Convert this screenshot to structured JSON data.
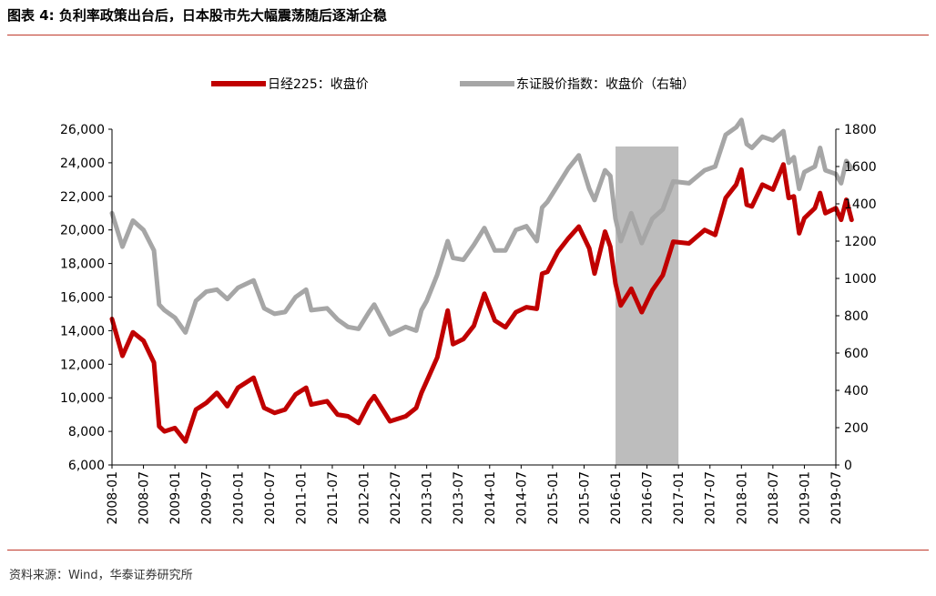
{
  "figure": {
    "title": "图表 4:  负利率政策出台后，日本股市先大幅震荡随后逐渐企稳",
    "source": "资料来源：Wind，华泰证券研究所"
  },
  "chart_data": {
    "type": "line",
    "legend": {
      "placement": "top-center",
      "entries": [
        "日经225：收盘价",
        "东证股价指数：收盘价（右轴）"
      ]
    },
    "x_tick_labels": [
      "2008-01",
      "2008-07",
      "2009-01",
      "2009-07",
      "2010-01",
      "2010-07",
      "2011-01",
      "2011-07",
      "2012-01",
      "2012-07",
      "2013-01",
      "2013-07",
      "2014-01",
      "2014-07",
      "2015-01",
      "2015-07",
      "2016-01",
      "2016-07",
      "2017-01",
      "2017-07",
      "2018-01",
      "2018-07",
      "2019-01",
      "2019-07"
    ],
    "y_left": {
      "min": 6000,
      "max": 26000,
      "ticks": [
        "6,000",
        "8,000",
        "10,000",
        "12,000",
        "14,000",
        "16,000",
        "18,000",
        "20,000",
        "22,000",
        "24,000",
        "26,000"
      ]
    },
    "y_right": {
      "min": 0,
      "max": 1800,
      "ticks": [
        "0",
        "200",
        "400",
        "600",
        "800",
        "1000",
        "1200",
        "1400",
        "1600",
        "1800"
      ]
    },
    "shaded_period": {
      "from": "2016-01",
      "to": "2017-01",
      "color": "#bdbdbd"
    },
    "series": [
      {
        "name": "日经225：收盘价",
        "axis": "left",
        "color": "#c00000",
        "x": [
          "2008-01",
          "2008-03",
          "2008-05",
          "2008-07",
          "2008-09",
          "2008-10",
          "2008-11",
          "2009-01",
          "2009-03",
          "2009-05",
          "2009-07",
          "2009-09",
          "2009-11",
          "2010-01",
          "2010-04",
          "2010-06",
          "2010-08",
          "2010-10",
          "2010-12",
          "2011-02",
          "2011-03",
          "2011-06",
          "2011-08",
          "2011-10",
          "2011-12",
          "2012-02",
          "2012-03",
          "2012-06",
          "2012-09",
          "2012-11",
          "2012-12",
          "2013-01",
          "2013-03",
          "2013-05",
          "2013-06",
          "2013-08",
          "2013-10",
          "2013-12",
          "2014-02",
          "2014-04",
          "2014-06",
          "2014-08",
          "2014-10",
          "2014-11",
          "2014-12",
          "2015-02",
          "2015-04",
          "2015-06",
          "2015-08",
          "2015-09",
          "2015-11",
          "2015-12",
          "2016-01",
          "2016-02",
          "2016-04",
          "2016-06",
          "2016-08",
          "2016-10",
          "2016-12",
          "2017-03",
          "2017-06",
          "2017-08",
          "2017-10",
          "2017-12",
          "2018-01",
          "2018-02",
          "2018-03",
          "2018-05",
          "2018-07",
          "2018-09",
          "2018-10",
          "2018-11",
          "2018-12",
          "2019-01",
          "2019-03",
          "2019-04",
          "2019-05",
          "2019-07",
          "2019-08",
          "2019-09",
          "2019-10"
        ],
        "values": [
          14700,
          12500,
          13900,
          13400,
          12100,
          8300,
          8000,
          8200,
          7400,
          9300,
          9700,
          10300,
          9500,
          10600,
          11200,
          9400,
          9100,
          9300,
          10200,
          10600,
          9600,
          9800,
          9000,
          8900,
          8500,
          9700,
          10100,
          8600,
          8900,
          9400,
          10300,
          11000,
          12400,
          15200,
          13200,
          13500,
          14300,
          16200,
          14600,
          14200,
          15100,
          15400,
          15300,
          17400,
          17500,
          18700,
          19500,
          20200,
          18900,
          17400,
          19900,
          19000,
          16800,
          15500,
          16500,
          15100,
          16400,
          17300,
          19300,
          19200,
          20000,
          19700,
          21900,
          22700,
          23600,
          21500,
          21400,
          22700,
          22400,
          23900,
          21900,
          22000,
          19800,
          20700,
          21300,
          22200,
          21000,
          21300,
          20600,
          21800,
          20600
        ]
      },
      {
        "name": "东证股价指数：收盘价（右轴）",
        "axis": "right",
        "color": "#a6a6a6",
        "x": [
          "2008-01",
          "2008-03",
          "2008-05",
          "2008-07",
          "2008-09",
          "2008-10",
          "2008-11",
          "2009-01",
          "2009-03",
          "2009-05",
          "2009-07",
          "2009-09",
          "2009-11",
          "2010-01",
          "2010-04",
          "2010-06",
          "2010-08",
          "2010-10",
          "2010-12",
          "2011-02",
          "2011-03",
          "2011-06",
          "2011-08",
          "2011-10",
          "2011-12",
          "2012-02",
          "2012-03",
          "2012-06",
          "2012-09",
          "2012-11",
          "2012-12",
          "2013-01",
          "2013-03",
          "2013-05",
          "2013-06",
          "2013-08",
          "2013-10",
          "2013-12",
          "2014-02",
          "2014-04",
          "2014-06",
          "2014-08",
          "2014-10",
          "2014-11",
          "2014-12",
          "2015-02",
          "2015-04",
          "2015-06",
          "2015-08",
          "2015-09",
          "2015-11",
          "2015-12",
          "2016-01",
          "2016-02",
          "2016-04",
          "2016-06",
          "2016-08",
          "2016-10",
          "2016-12",
          "2017-03",
          "2017-06",
          "2017-08",
          "2017-10",
          "2017-12",
          "2018-01",
          "2018-02",
          "2018-03",
          "2018-05",
          "2018-07",
          "2018-09",
          "2018-10",
          "2018-11",
          "2018-12",
          "2019-01",
          "2019-03",
          "2019-04",
          "2019-05",
          "2019-07",
          "2019-08",
          "2019-09",
          "2019-10"
        ],
        "values": [
          1350,
          1170,
          1310,
          1260,
          1150,
          860,
          830,
          790,
          710,
          880,
          930,
          940,
          890,
          950,
          990,
          840,
          810,
          820,
          900,
          940,
          830,
          840,
          780,
          740,
          730,
          820,
          860,
          700,
          740,
          720,
          830,
          880,
          1020,
          1200,
          1110,
          1100,
          1180,
          1270,
          1150,
          1150,
          1260,
          1280,
          1200,
          1380,
          1410,
          1500,
          1590,
          1660,
          1480,
          1420,
          1580,
          1550,
          1320,
          1200,
          1350,
          1190,
          1320,
          1370,
          1520,
          1510,
          1580,
          1600,
          1770,
          1810,
          1850,
          1720,
          1700,
          1760,
          1740,
          1790,
          1620,
          1650,
          1480,
          1570,
          1600,
          1700,
          1580,
          1560,
          1510,
          1630,
          1590
        ]
      }
    ]
  }
}
